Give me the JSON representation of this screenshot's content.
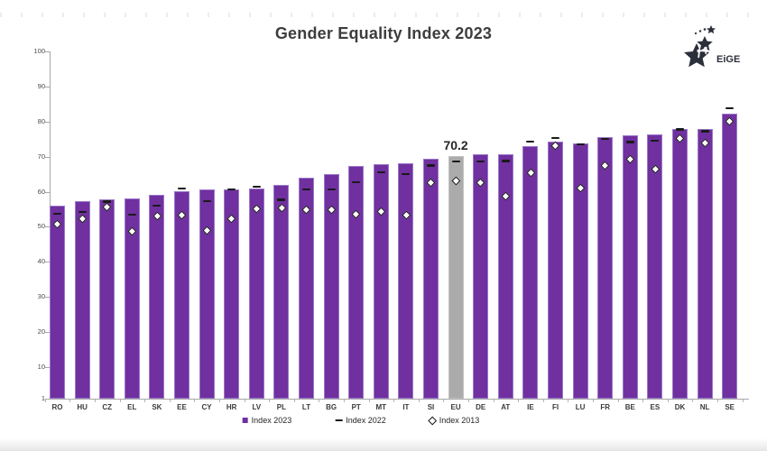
{
  "header": {
    "title": "Gender Equality Index 2023",
    "logo_text": "EiGE"
  },
  "chart_data": {
    "type": "bar",
    "title": "Gender Equality Index 2023",
    "categories": [
      "RO",
      "HU",
      "CZ",
      "EL",
      "SK",
      "EE",
      "CY",
      "HR",
      "LV",
      "PL",
      "LT",
      "BG",
      "PT",
      "MT",
      "IT",
      "SI",
      "EU",
      "DE",
      "AT",
      "IE",
      "FI",
      "LU",
      "FR",
      "BE",
      "ES",
      "DK",
      "NL",
      "SE"
    ],
    "series": [
      {
        "name": "Index 2023",
        "marker": "bar",
        "values": [
          56.1,
          57.3,
          57.9,
          58.0,
          59.2,
          60.2,
          60.7,
          60.7,
          61.0,
          61.9,
          64.1,
          65.1,
          67.4,
          67.8,
          68.2,
          69.4,
          70.2,
          70.8,
          70.8,
          73.0,
          74.4,
          73.8,
          75.7,
          76.0,
          76.4,
          77.8,
          77.9,
          82.2
        ]
      },
      {
        "name": "Index 2022",
        "marker": "dash",
        "values": [
          53.7,
          54.2,
          57.2,
          53.4,
          56.0,
          61.0,
          57.3,
          60.7,
          61.4,
          57.7,
          60.6,
          60.7,
          62.8,
          65.6,
          65.0,
          67.5,
          68.6,
          68.7,
          68.8,
          74.3,
          75.4,
          73.5,
          75.1,
          74.2,
          74.6,
          77.8,
          77.3,
          83.9
        ]
      },
      {
        "name": "Index 2013",
        "marker": "diamond",
        "values": [
          50.8,
          52.4,
          55.6,
          48.6,
          53.0,
          53.4,
          49.0,
          52.3,
          55.2,
          55.5,
          54.9,
          55.0,
          53.7,
          54.4,
          53.3,
          62.7,
          63.1,
          62.6,
          58.7,
          65.5,
          73.1,
          61.2,
          67.5,
          69.3,
          66.4,
          75.2,
          74.0,
          80.1
        ]
      }
    ],
    "highlight_category": "EU",
    "highlight_label": "70.2",
    "y_ticks": [
      100,
      90,
      80,
      70,
      60,
      50,
      40,
      30,
      20,
      10,
      1
    ],
    "ylim": [
      1,
      100
    ],
    "grid": "off",
    "legend_position": "bottom-center",
    "colors": {
      "bar_fill": "#7030A0",
      "bar_border": "#9b79c9",
      "highlight_fill": "#ababab",
      "dash": "#1a1a1a",
      "diamond_fill": "#ffffff",
      "title_text": "#3d3d3d"
    }
  },
  "legend": {
    "items": [
      {
        "label": "Index 2023"
      },
      {
        "label": "Index 2022"
      },
      {
        "label": "Index 2013"
      }
    ]
  }
}
